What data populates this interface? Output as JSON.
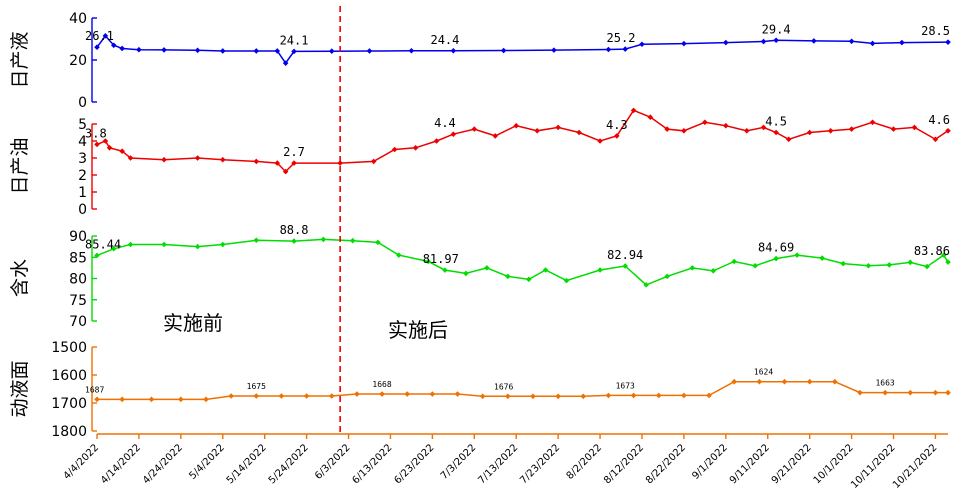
{
  "chart_data": {
    "type": "line",
    "x_dates": [
      "4/4/2022",
      "4/14/2022",
      "4/24/2022",
      "5/4/2022",
      "5/14/2022",
      "5/24/2022",
      "6/3/2022",
      "6/13/2022",
      "6/23/2022",
      "7/3/2022",
      "7/13/2022",
      "7/23/2022",
      "8/2/2022",
      "8/12/2022",
      "8/22/2022",
      "9/1/2022",
      "9/11/2022",
      "9/21/2022",
      "10/1/2022",
      "10/11/2022",
      "10/21/2022"
    ],
    "x_range": [
      "4/4/2022",
      "10/24/2022"
    ],
    "intervention_date": "6/1/2022",
    "annotations": {
      "before": "实施前",
      "after": "实施后"
    },
    "panels": [
      {
        "id": "daily_liquid",
        "ylabel": "日产液",
        "color": "#0000ee",
        "ylim": [
          0,
          40
        ],
        "yticks": [
          0,
          20,
          40
        ],
        "inverted": false,
        "marker": "diamond",
        "labels": [
          {
            "date": "4/5/2022",
            "value": 26.1,
            "text": "26.1"
          },
          {
            "date": "5/21/2022",
            "value": 24.1,
            "text": "24.1"
          },
          {
            "date": "6/26/2022",
            "value": 24.4,
            "text": "24.4"
          },
          {
            "date": "8/7/2022",
            "value": 25.2,
            "text": "25.2"
          },
          {
            "date": "9/13/2022",
            "value": 29.4,
            "text": "29.4"
          },
          {
            "date": "10/23/2022",
            "value": 28.5,
            "text": "28.5"
          }
        ],
        "series": [
          {
            "date": "4/4/2022",
            "value": 26.1
          },
          {
            "date": "4/6/2022",
            "value": 31.5
          },
          {
            "date": "4/8/2022",
            "value": 27
          },
          {
            "date": "4/10/2022",
            "value": 25.5
          },
          {
            "date": "4/14/2022",
            "value": 24.9
          },
          {
            "date": "4/20/2022",
            "value": 24.8
          },
          {
            "date": "4/28/2022",
            "value": 24.6
          },
          {
            "date": "5/4/2022",
            "value": 24.3
          },
          {
            "date": "5/12/2022",
            "value": 24.3
          },
          {
            "date": "5/17/2022",
            "value": 24.3
          },
          {
            "date": "5/19/2022",
            "value": 18.5
          },
          {
            "date": "5/21/2022",
            "value": 24.1
          },
          {
            "date": "5/30/2022",
            "value": 24.2
          },
          {
            "date": "6/8/2022",
            "value": 24.3
          },
          {
            "date": "6/18/2022",
            "value": 24.4
          },
          {
            "date": "6/28/2022",
            "value": 24.4
          },
          {
            "date": "7/10/2022",
            "value": 24.5
          },
          {
            "date": "7/22/2022",
            "value": 24.7
          },
          {
            "date": "8/4/2022",
            "value": 25.0
          },
          {
            "date": "8/8/2022",
            "value": 25.2
          },
          {
            "date": "8/12/2022",
            "value": 27.5
          },
          {
            "date": "8/22/2022",
            "value": 27.8
          },
          {
            "date": "9/1/2022",
            "value": 28.3
          },
          {
            "date": "9/10/2022",
            "value": 28.8
          },
          {
            "date": "9/13/2022",
            "value": 29.4
          },
          {
            "date": "9/22/2022",
            "value": 29.1
          },
          {
            "date": "10/1/2022",
            "value": 28.9
          },
          {
            "date": "10/6/2022",
            "value": 27.9
          },
          {
            "date": "10/13/2022",
            "value": 28.3
          },
          {
            "date": "10/24/2022",
            "value": 28.5
          }
        ]
      },
      {
        "id": "daily_oil",
        "ylabel": "日产油",
        "color": "#ee0000",
        "ylim": [
          0,
          5
        ],
        "yticks": [
          0,
          1,
          2,
          3,
          4,
          5
        ],
        "inverted": false,
        "marker": "diamond",
        "labels": [
          {
            "date": "4/4/2022",
            "value": 3.8,
            "text": "3.8"
          },
          {
            "date": "5/21/2022",
            "value": 2.7,
            "text": "2.7"
          },
          {
            "date": "6/26/2022",
            "value": 4.4,
            "text": "4.4"
          },
          {
            "date": "8/6/2022",
            "value": 4.3,
            "text": "4.3"
          },
          {
            "date": "9/13/2022",
            "value": 4.5,
            "text": "4.5"
          },
          {
            "date": "10/23/2022",
            "value": 4.6,
            "text": "4.6"
          }
        ],
        "series": [
          {
            "date": "4/4/2022",
            "value": 3.8
          },
          {
            "date": "4/6/2022",
            "value": 4.0
          },
          {
            "date": "4/7/2022",
            "value": 3.6
          },
          {
            "date": "4/10/2022",
            "value": 3.4
          },
          {
            "date": "4/12/2022",
            "value": 3.0
          },
          {
            "date": "4/20/2022",
            "value": 2.9
          },
          {
            "date": "4/28/2022",
            "value": 3.0
          },
          {
            "date": "5/4/2022",
            "value": 2.9
          },
          {
            "date": "5/12/2022",
            "value": 2.8
          },
          {
            "date": "5/17/2022",
            "value": 2.7
          },
          {
            "date": "5/19/2022",
            "value": 2.2
          },
          {
            "date": "5/21/2022",
            "value": 2.7
          },
          {
            "date": "6/1/2022",
            "value": 2.7
          },
          {
            "date": "6/9/2022",
            "value": 2.8
          },
          {
            "date": "6/14/2022",
            "value": 3.5
          },
          {
            "date": "6/19/2022",
            "value": 3.6
          },
          {
            "date": "6/24/2022",
            "value": 4.0
          },
          {
            "date": "6/28/2022",
            "value": 4.4
          },
          {
            "date": "7/3/2022",
            "value": 4.7
          },
          {
            "date": "7/8/2022",
            "value": 4.3
          },
          {
            "date": "7/13/2022",
            "value": 4.9
          },
          {
            "date": "7/18/2022",
            "value": 4.6
          },
          {
            "date": "7/23/2022",
            "value": 4.8
          },
          {
            "date": "7/28/2022",
            "value": 4.5
          },
          {
            "date": "8/2/2022",
            "value": 4.0
          },
          {
            "date": "8/6/2022",
            "value": 4.3
          },
          {
            "date": "8/10/2022",
            "value": 5.8
          },
          {
            "date": "8/14/2022",
            "value": 5.4
          },
          {
            "date": "8/18/2022",
            "value": 4.7
          },
          {
            "date": "8/22/2022",
            "value": 4.6
          },
          {
            "date": "8/27/2022",
            "value": 5.1
          },
          {
            "date": "9/1/2022",
            "value": 4.9
          },
          {
            "date": "9/6/2022",
            "value": 4.6
          },
          {
            "date": "9/10/2022",
            "value": 4.8
          },
          {
            "date": "9/13/2022",
            "value": 4.5
          },
          {
            "date": "9/16/2022",
            "value": 4.1
          },
          {
            "date": "9/21/2022",
            "value": 4.5
          },
          {
            "date": "9/26/2022",
            "value": 4.6
          },
          {
            "date": "10/1/2022",
            "value": 4.7
          },
          {
            "date": "10/6/2022",
            "value": 5.1
          },
          {
            "date": "10/11/2022",
            "value": 4.7
          },
          {
            "date": "10/16/2022",
            "value": 4.8
          },
          {
            "date": "10/21/2022",
            "value": 4.1
          },
          {
            "date": "10/24/2022",
            "value": 4.6
          }
        ]
      },
      {
        "id": "water_cut",
        "ylabel": "含水",
        "color": "#00dd00",
        "ylim": [
          70,
          90
        ],
        "yticks": [
          70,
          75,
          80,
          85,
          90
        ],
        "inverted": false,
        "marker": "diamond",
        "labels": [
          {
            "date": "4/4/2022",
            "value": 85.44,
            "text": "85.44"
          },
          {
            "date": "5/21/2022",
            "value": 88.8,
            "text": "88.8"
          },
          {
            "date": "6/25/2022",
            "value": 81.97,
            "text": "81.97"
          },
          {
            "date": "8/8/2022",
            "value": 82.94,
            "text": "82.94"
          },
          {
            "date": "9/13/2022",
            "value": 84.69,
            "text": "84.69"
          },
          {
            "date": "10/23/2022",
            "value": 83.86,
            "text": "83.86"
          }
        ],
        "series": [
          {
            "date": "4/4/2022",
            "value": 85.44
          },
          {
            "date": "4/8/2022",
            "value": 87.0
          },
          {
            "date": "4/12/2022",
            "value": 88.0
          },
          {
            "date": "4/20/2022",
            "value": 88.0
          },
          {
            "date": "4/28/2022",
            "value": 87.5
          },
          {
            "date": "5/4/2022",
            "value": 88.0
          },
          {
            "date": "5/12/2022",
            "value": 89.0
          },
          {
            "date": "5/21/2022",
            "value": 88.8
          },
          {
            "date": "5/28/2022",
            "value": 89.2
          },
          {
            "date": "6/4/2022",
            "value": 88.9
          },
          {
            "date": "6/10/2022",
            "value": 88.5
          },
          {
            "date": "6/15/2022",
            "value": 85.5
          },
          {
            "date": "6/22/2022",
            "value": 84.0
          },
          {
            "date": "6/26/2022",
            "value": 81.97
          },
          {
            "date": "7/1/2022",
            "value": 81.2
          },
          {
            "date": "7/6/2022",
            "value": 82.5
          },
          {
            "date": "7/11/2022",
            "value": 80.5
          },
          {
            "date": "7/16/2022",
            "value": 79.8
          },
          {
            "date": "7/20/2022",
            "value": 82.0
          },
          {
            "date": "7/25/2022",
            "value": 79.5
          },
          {
            "date": "8/2/2022",
            "value": 82.0
          },
          {
            "date": "8/8/2022",
            "value": 82.94
          },
          {
            "date": "8/13/2022",
            "value": 78.5
          },
          {
            "date": "8/18/2022",
            "value": 80.5
          },
          {
            "date": "8/24/2022",
            "value": 82.5
          },
          {
            "date": "8/29/2022",
            "value": 81.8
          },
          {
            "date": "9/3/2022",
            "value": 84.0
          },
          {
            "date": "9/8/2022",
            "value": 83.0
          },
          {
            "date": "9/13/2022",
            "value": 84.69
          },
          {
            "date": "9/18/2022",
            "value": 85.5
          },
          {
            "date": "9/24/2022",
            "value": 84.8
          },
          {
            "date": "9/29/2022",
            "value": 83.5
          },
          {
            "date": "10/5/2022",
            "value": 83.0
          },
          {
            "date": "10/10/2022",
            "value": 83.2
          },
          {
            "date": "10/15/2022",
            "value": 83.8
          },
          {
            "date": "10/19/2022",
            "value": 82.8
          },
          {
            "date": "10/23/2022",
            "value": 85.5
          },
          {
            "date": "10/24/2022",
            "value": 83.86
          }
        ]
      },
      {
        "id": "working_fluid_level",
        "ylabel": "动液面",
        "color": "#f07000",
        "ylim": [
          1500,
          1800
        ],
        "yticks": [
          1500,
          1600,
          1700,
          1800
        ],
        "inverted": true,
        "marker": "diamond",
        "labels": [
          {
            "date": "4/4/2022",
            "value": 1687,
            "text": "1687"
          },
          {
            "date": "5/12/2022",
            "value": 1675,
            "text": "1675"
          },
          {
            "date": "6/11/2022",
            "value": 1668,
            "text": "1668"
          },
          {
            "date": "7/10/2022",
            "value": 1676,
            "text": "1676"
          },
          {
            "date": "8/8/2022",
            "value": 1673,
            "text": "1673"
          },
          {
            "date": "9/10/2022",
            "value": 1624,
            "text": "1624"
          },
          {
            "date": "10/9/2022",
            "value": 1663,
            "text": "1663"
          }
        ],
        "series": [
          {
            "date": "4/4/2022",
            "value": 1687
          },
          {
            "date": "4/10/2022",
            "value": 1687
          },
          {
            "date": "4/17/2022",
            "value": 1687
          },
          {
            "date": "4/24/2022",
            "value": 1687
          },
          {
            "date": "4/30/2022",
            "value": 1687
          },
          {
            "date": "5/6/2022",
            "value": 1675
          },
          {
            "date": "5/12/2022",
            "value": 1675
          },
          {
            "date": "5/18/2022",
            "value": 1675
          },
          {
            "date": "5/24/2022",
            "value": 1675
          },
          {
            "date": "5/30/2022",
            "value": 1675
          },
          {
            "date": "6/5/2022",
            "value": 1668
          },
          {
            "date": "6/11/2022",
            "value": 1668
          },
          {
            "date": "6/17/2022",
            "value": 1668
          },
          {
            "date": "6/23/2022",
            "value": 1668
          },
          {
            "date": "6/29/2022",
            "value": 1668
          },
          {
            "date": "7/5/2022",
            "value": 1676
          },
          {
            "date": "7/11/2022",
            "value": 1676
          },
          {
            "date": "7/17/2022",
            "value": 1676
          },
          {
            "date": "7/23/2022",
            "value": 1676
          },
          {
            "date": "7/29/2022",
            "value": 1676
          },
          {
            "date": "8/4/2022",
            "value": 1673
          },
          {
            "date": "8/10/2022",
            "value": 1673
          },
          {
            "date": "8/16/2022",
            "value": 1673
          },
          {
            "date": "8/22/2022",
            "value": 1673
          },
          {
            "date": "8/28/2022",
            "value": 1673
          },
          {
            "date": "9/3/2022",
            "value": 1624
          },
          {
            "date": "9/9/2022",
            "value": 1624
          },
          {
            "date": "9/15/2022",
            "value": 1624
          },
          {
            "date": "9/21/2022",
            "value": 1624
          },
          {
            "date": "9/27/2022",
            "value": 1624
          },
          {
            "date": "10/3/2022",
            "value": 1663
          },
          {
            "date": "10/9/2022",
            "value": 1663
          },
          {
            "date": "10/15/2022",
            "value": 1663
          },
          {
            "date": "10/21/2022",
            "value": 1663
          },
          {
            "date": "10/24/2022",
            "value": 1663
          }
        ]
      }
    ]
  }
}
